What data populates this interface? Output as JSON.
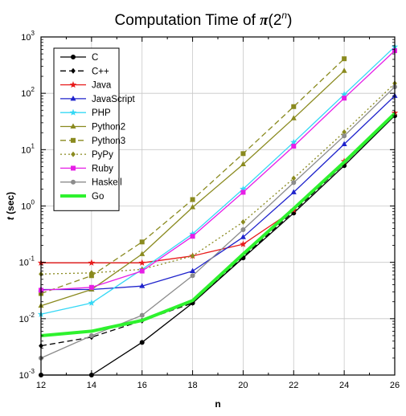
{
  "chart_data": {
    "type": "line",
    "title": {
      "prefix": "Computation Time of ",
      "pi": "π",
      "open": "(2",
      "exp": "n",
      "close": ")"
    },
    "xlabel": "n",
    "ylabel": {
      "var": "t",
      "unit": " (sec)"
    },
    "x": [
      12,
      14,
      16,
      18,
      20,
      22,
      24,
      26
    ],
    "xlim": [
      12,
      26
    ],
    "ylim": [
      0.001,
      1000
    ],
    "yscale": "log",
    "xtick_labels": [
      "12",
      "14",
      "16",
      "18",
      "20",
      "22",
      "24",
      "26"
    ],
    "ytick_labels": [
      {
        "value": 0.001,
        "base": "10",
        "exp": "-3"
      },
      {
        "value": 0.01,
        "base": "10",
        "exp": "-2"
      },
      {
        "value": 0.1,
        "base": "10",
        "exp": "-1"
      },
      {
        "value": 1,
        "base": "10",
        "exp": "0"
      },
      {
        "value": 10,
        "base": "10",
        "exp": "1"
      },
      {
        "value": 100,
        "base": "10",
        "exp": "2"
      },
      {
        "value": 1000,
        "base": "10",
        "exp": "3"
      }
    ],
    "legend_position": "top-left",
    "grid": true,
    "series": [
      {
        "name": "C",
        "color": "#000000",
        "dash": "solid",
        "marker": "circle",
        "width": 1.3,
        "values": [
          0.001,
          0.001,
          0.0038,
          0.019,
          0.12,
          0.75,
          5.2,
          40
        ]
      },
      {
        "name": "C++",
        "color": "#000000",
        "dash": "dashed",
        "marker": "diamond",
        "width": 1.3,
        "values": [
          0.0033,
          0.0047,
          0.0092,
          0.019,
          0.125,
          0.8,
          5.6,
          42
        ]
      },
      {
        "name": "Java",
        "color": "#e81c1c",
        "dash": "solid",
        "marker": "star",
        "width": 1.3,
        "values": [
          0.098,
          0.098,
          0.098,
          0.13,
          0.21,
          0.85,
          6.2,
          45
        ]
      },
      {
        "name": "JavaScript",
        "color": "#1f23cc",
        "dash": "solid",
        "marker": "triangle",
        "width": 1.3,
        "values": [
          0.033,
          0.033,
          0.038,
          0.07,
          0.28,
          1.75,
          12.5,
          90
        ]
      },
      {
        "name": "PHP",
        "color": "#35d8f5",
        "dash": "solid",
        "marker": "star",
        "width": 1.3,
        "values": [
          0.012,
          0.019,
          0.075,
          0.32,
          2.0,
          13.5,
          95,
          670
        ]
      },
      {
        "name": "Python2",
        "color": "#8a8a1f",
        "dash": "solid",
        "marker": "triangle",
        "width": 1.3,
        "values": [
          0.017,
          0.033,
          0.14,
          0.95,
          5.5,
          36,
          250,
          null
        ]
      },
      {
        "name": "Python3",
        "color": "#8a8a1f",
        "dash": "dashed",
        "marker": "square",
        "width": 1.3,
        "values": [
          0.028,
          0.058,
          0.23,
          1.3,
          8.5,
          58,
          410,
          null
        ]
      },
      {
        "name": "PyPy",
        "color": "#8a8a1f",
        "dash": "dotted",
        "marker": "diamond",
        "width": 1.3,
        "values": [
          0.062,
          0.065,
          0.075,
          0.13,
          0.52,
          3.1,
          20.5,
          150
        ]
      },
      {
        "name": "Ruby",
        "color": "#e61ee6",
        "dash": "solid",
        "marker": "square",
        "width": 1.3,
        "values": [
          0.032,
          0.036,
          0.07,
          0.29,
          1.75,
          11.5,
          82,
          570
        ]
      },
      {
        "name": "Haskell",
        "color": "#8c8c8c",
        "dash": "solid",
        "marker": "circle",
        "width": 1.3,
        "values": [
          0.002,
          0.005,
          0.0115,
          0.058,
          0.38,
          2.6,
          17.5,
          130
        ]
      },
      {
        "name": "Go",
        "color": "#2ef22e",
        "dash": "solid",
        "marker": "none",
        "width": 4,
        "values": [
          0.005,
          0.006,
          0.0093,
          0.021,
          0.14,
          0.9,
          6.0,
          44
        ]
      }
    ]
  }
}
